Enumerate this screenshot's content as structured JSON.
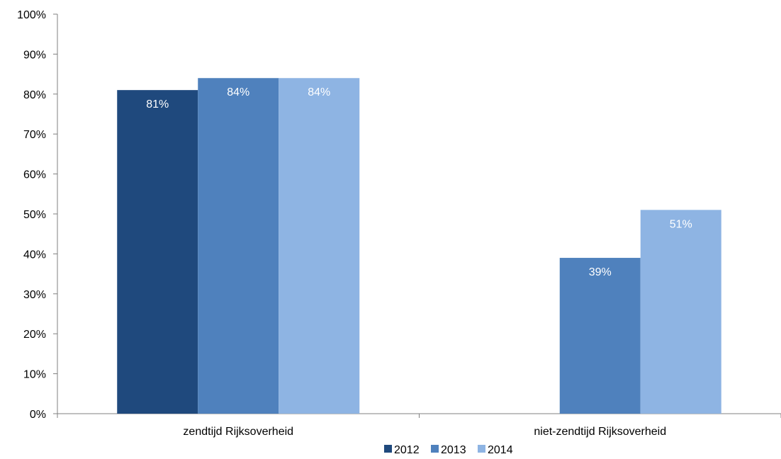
{
  "chart_data": {
    "type": "bar",
    "categories": [
      "zendtijd  Rijksoverheid",
      "niet-zendtijd Rijksoverheid"
    ],
    "series": [
      {
        "name": "2012",
        "values": [
          81,
          null
        ],
        "labels": [
          "81%",
          ""
        ],
        "color": "#1f497d"
      },
      {
        "name": "2013",
        "values": [
          84,
          39
        ],
        "labels": [
          "84%",
          "39%"
        ],
        "color": "#4f81bd"
      },
      {
        "name": "2014",
        "values": [
          84,
          51
        ],
        "labels": [
          "84%",
          "51%"
        ],
        "color": "#8eb4e3"
      }
    ],
    "ylim": [
      0,
      100
    ],
    "yticks": [
      0,
      10,
      20,
      30,
      40,
      50,
      60,
      70,
      80,
      90,
      100
    ],
    "ytick_labels": [
      "0%",
      "10%",
      "20%",
      "30%",
      "40%",
      "50%",
      "60%",
      "70%",
      "80%",
      "90%",
      "100%"
    ],
    "legend_position": "bottom",
    "grid": false
  }
}
